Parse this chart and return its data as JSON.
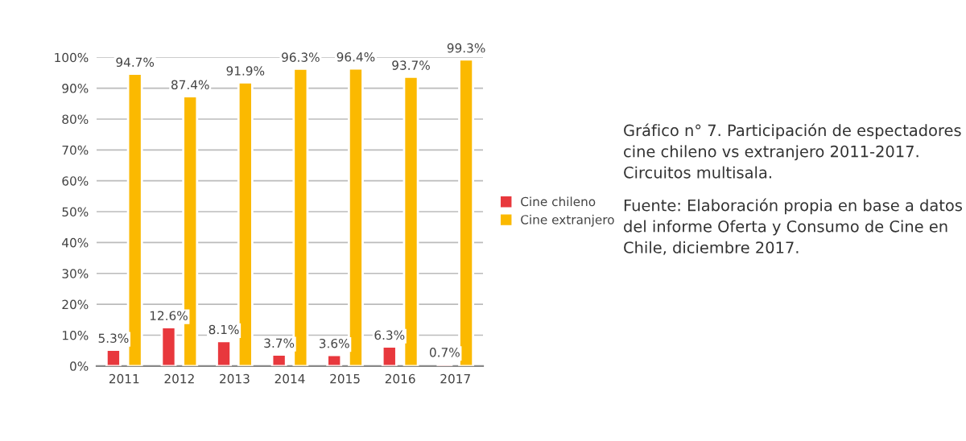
{
  "chart_data": {
    "type": "bar",
    "categories": [
      "2011",
      "2012",
      "2013",
      "2014",
      "2015",
      "2016",
      "2017"
    ],
    "series": [
      {
        "name": "Cine chileno",
        "color": "#e8383d",
        "values": [
          5.3,
          12.6,
          8.1,
          3.7,
          3.6,
          6.3,
          0.7
        ],
        "value_labels": [
          "5.3%",
          "12.6%",
          "8.1%",
          "3.7%",
          "3.6%",
          "6.3%",
          "0.7%"
        ]
      },
      {
        "name": "Cine extranjero",
        "color": "#fbb900",
        "values": [
          94.7,
          87.4,
          91.9,
          96.3,
          96.4,
          93.7,
          99.3
        ],
        "value_labels": [
          "94.7%",
          "87.4%",
          "91.9%",
          "96.3%",
          "96.4%",
          "93.7%",
          "99.3%"
        ]
      }
    ],
    "ylim": [
      0,
      100
    ],
    "yticks": [
      {
        "value": 0,
        "label": "0%"
      },
      {
        "value": 10,
        "label": "10%"
      },
      {
        "value": 20,
        "label": "20%"
      },
      {
        "value": 30,
        "label": "30%"
      },
      {
        "value": 40,
        "label": "40%"
      },
      {
        "value": 50,
        "label": "50%"
      },
      {
        "value": 60,
        "label": "60%"
      },
      {
        "value": 70,
        "label": "70%"
      },
      {
        "value": 80,
        "label": "80%"
      },
      {
        "value": 90,
        "label": "90%"
      },
      {
        "value": 100,
        "label": "100%"
      }
    ],
    "grid": "y",
    "legend": "right",
    "annotations": [
      "Gráfico n° 7. Participación de espectadores cine chileno vs extranjero 2011-2017. Circuitos multisala.",
      "Fuente: Elaboración propia en base a datos del informe Oferta y Consumo de Cine en Chile, diciembre 2017."
    ]
  }
}
